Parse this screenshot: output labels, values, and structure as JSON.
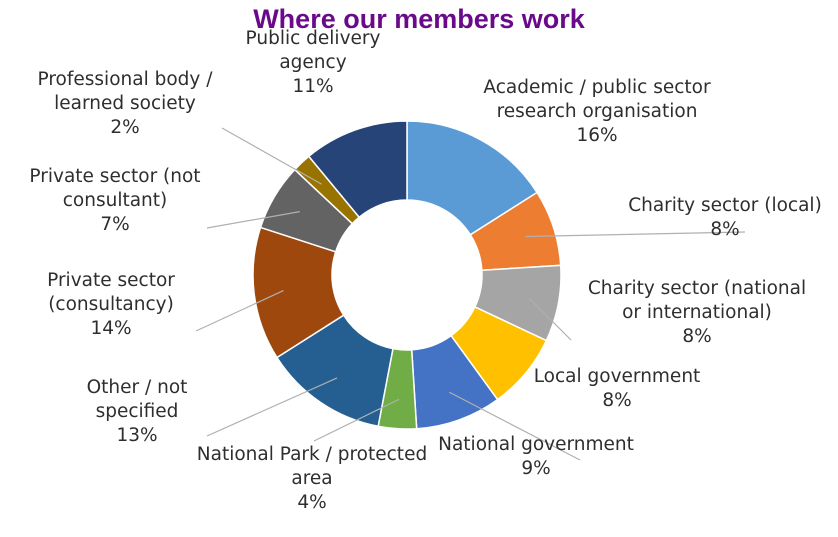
{
  "chart_data": {
    "type": "pie",
    "title": "Where our members work",
    "donut": true,
    "legend": "none",
    "slices": [
      {
        "label": "Academic / public sector research organisation",
        "label_lines": [
          "Academic / public sector",
          "research organisation"
        ],
        "pct_text": "16%",
        "value": 16,
        "color": "#5b9bd5"
      },
      {
        "label": "Charity sector (local)",
        "label_lines": [
          "Charity sector (local)"
        ],
        "pct_text": "8%",
        "value": 8,
        "color": "#ed7d31"
      },
      {
        "label": "Charity sector (national or international)",
        "label_lines": [
          "Charity sector (national",
          "or international)"
        ],
        "pct_text": "8%",
        "value": 8,
        "color": "#a5a5a5"
      },
      {
        "label": "Local government",
        "label_lines": [
          "Local government"
        ],
        "pct_text": "8%",
        "value": 8,
        "color": "#ffc000"
      },
      {
        "label": "National government",
        "label_lines": [
          "National government"
        ],
        "pct_text": "9%",
        "value": 9,
        "color": "#4472c4"
      },
      {
        "label": "National Park / protected area",
        "label_lines": [
          "National Park / protected",
          "area"
        ],
        "pct_text": "4%",
        "value": 4,
        "color": "#70ad47"
      },
      {
        "label": "Other / not specified",
        "label_lines": [
          "Other / not",
          "specified"
        ],
        "pct_text": "13%",
        "value": 13,
        "color": "#255e91"
      },
      {
        "label": "Private sector (consultancy)",
        "label_lines": [
          "Private sector",
          "(consultancy)"
        ],
        "pct_text": "14%",
        "value": 14,
        "color": "#9e480e"
      },
      {
        "label": "Private sector (not consultant)",
        "label_lines": [
          "Private sector (not",
          "consultant)"
        ],
        "pct_text": "7%",
        "value": 7,
        "color": "#636363"
      },
      {
        "label": "Professional body / learned society",
        "label_lines": [
          "Professional body /",
          "learned society"
        ],
        "pct_text": "2%",
        "value": 2,
        "color": "#997300"
      },
      {
        "label": "Public delivery agency",
        "label_lines": [
          "Public delivery",
          "agency"
        ],
        "pct_text": "11%",
        "value": 11,
        "color": "#264478"
      }
    ]
  }
}
